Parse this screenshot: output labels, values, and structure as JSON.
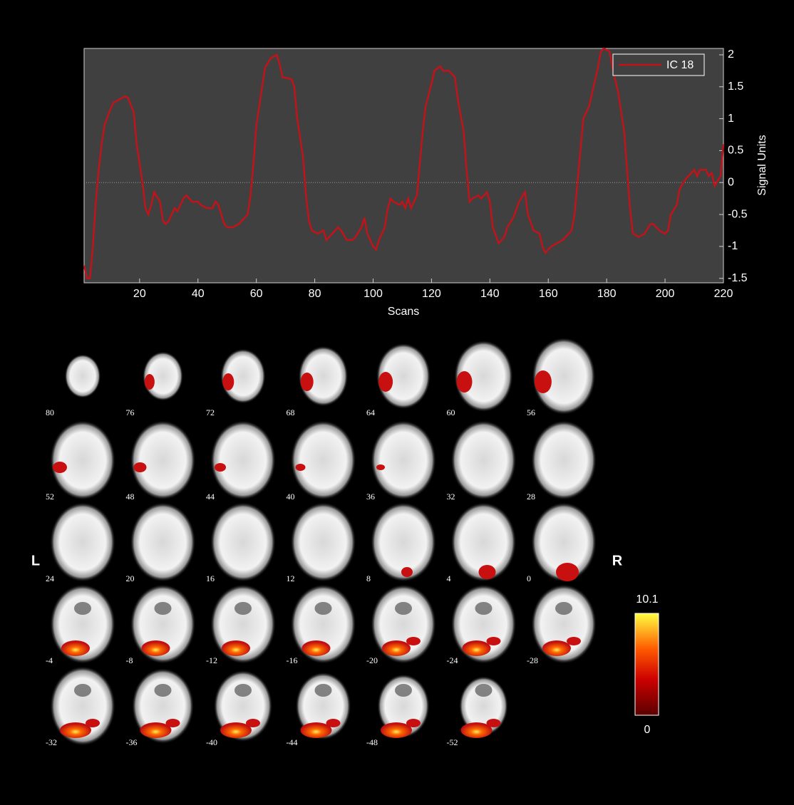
{
  "chart_data": {
    "type": "line",
    "xlabel": "Scans",
    "ylabel": "Signal Units",
    "x": [
      1,
      2,
      3,
      4,
      5,
      6,
      7,
      8,
      10,
      11,
      12,
      13,
      15,
      16,
      18,
      19,
      21,
      22,
      23,
      24,
      25,
      27,
      28,
      29,
      30,
      32,
      33,
      34,
      35,
      36,
      38,
      40,
      41,
      43,
      45,
      46,
      47,
      49,
      50,
      52,
      54,
      55,
      57,
      58,
      59,
      60,
      62,
      63,
      65,
      67,
      68,
      69,
      72,
      73,
      74,
      76,
      77,
      78,
      79,
      81,
      83,
      84,
      86,
      88,
      89,
      91,
      93,
      94,
      96,
      97,
      98,
      100,
      101,
      102,
      104,
      105,
      106,
      107,
      109,
      110,
      111,
      112,
      113,
      115,
      116,
      117,
      118,
      120,
      121,
      123,
      124,
      126,
      128,
      129,
      131,
      132,
      133,
      134,
      136,
      137,
      139,
      140,
      141,
      143,
      145,
      146,
      148,
      150,
      152,
      153,
      155,
      157,
      158,
      159,
      161,
      163,
      165,
      167,
      168,
      169,
      171,
      172,
      174,
      175,
      177,
      178,
      179,
      181,
      182,
      184,
      186,
      187,
      188,
      189,
      191,
      193,
      195,
      196,
      198,
      200,
      201,
      202,
      204,
      205,
      207,
      209,
      210,
      211,
      212,
      214,
      215,
      216,
      217,
      219,
      220
    ],
    "series": [
      {
        "name": "IC 18",
        "color": "#c0141a",
        "values": [
          -1.3,
          -1.5,
          -1.5,
          -1.0,
          -0.3,
          0.2,
          0.6,
          0.9,
          1.15,
          1.25,
          1.27,
          1.3,
          1.35,
          1.33,
          1.1,
          0.6,
          0,
          -0.4,
          -0.5,
          -0.35,
          -0.15,
          -0.3,
          -0.6,
          -0.65,
          -0.6,
          -0.4,
          -0.45,
          -0.35,
          -0.25,
          -0.2,
          -0.3,
          -0.3,
          -0.35,
          -0.4,
          -0.4,
          -0.3,
          -0.35,
          -0.65,
          -0.7,
          -0.7,
          -0.65,
          -0.6,
          -0.5,
          -0.2,
          0.3,
          0.9,
          1.5,
          1.8,
          1.95,
          2.0,
          1.85,
          1.65,
          1.62,
          1.5,
          1.0,
          0.4,
          -0.2,
          -0.6,
          -0.75,
          -0.8,
          -0.75,
          -0.9,
          -0.8,
          -0.7,
          -0.75,
          -0.9,
          -0.9,
          -0.85,
          -0.7,
          -0.55,
          -0.8,
          -1.0,
          -1.05,
          -0.9,
          -0.7,
          -0.4,
          -0.25,
          -0.3,
          -0.35,
          -0.3,
          -0.4,
          -0.25,
          -0.4,
          -0.2,
          0.3,
          0.8,
          1.2,
          1.55,
          1.75,
          1.82,
          1.75,
          1.75,
          1.65,
          1.3,
          0.8,
          0.2,
          -0.3,
          -0.25,
          -0.2,
          -0.25,
          -0.15,
          -0.3,
          -0.7,
          -0.95,
          -0.85,
          -0.7,
          -0.55,
          -0.3,
          -0.15,
          -0.5,
          -0.75,
          -0.8,
          -1.0,
          -1.1,
          -1.0,
          -0.95,
          -0.9,
          -0.8,
          -0.75,
          -0.5,
          0.5,
          1.0,
          1.2,
          1.4,
          1.8,
          2.05,
          2.1,
          2.05,
          1.8,
          1.4,
          0.8,
          0.2,
          -0.4,
          -0.8,
          -0.85,
          -0.8,
          -0.65,
          -0.65,
          -0.75,
          -0.8,
          -0.75,
          -0.5,
          -0.35,
          -0.1,
          0.05,
          0.15,
          0.2,
          0.1,
          0.2,
          0.2,
          0.1,
          0.15,
          -0.05,
          0.1,
          0.6
        ]
      }
    ],
    "xlim": [
      1,
      220
    ],
    "xticks": [
      20,
      40,
      60,
      80,
      100,
      120,
      140,
      160,
      180,
      200,
      220
    ],
    "ylim": [
      -1.57,
      2.1
    ],
    "yticks": [
      -1.5,
      -1,
      -0.5,
      0,
      0.5,
      1,
      1.5,
      2
    ],
    "zero_line": true,
    "legend": "upper right"
  },
  "slices": [
    "80",
    "76",
    "72",
    "68",
    "64",
    "60",
    "56",
    "52",
    "48",
    "44",
    "40",
    "36",
    "32",
    "28",
    "24",
    "20",
    "16",
    "12",
    "8",
    "4",
    "0",
    "-4",
    "-8",
    "-12",
    "-16",
    "-20",
    "-24",
    "-28",
    "-32",
    "-36",
    "-40",
    "-44",
    "-48",
    "-52"
  ],
  "left_label": "L",
  "right_label": "R",
  "colorbar": {
    "max": "10.1",
    "min": "0"
  }
}
